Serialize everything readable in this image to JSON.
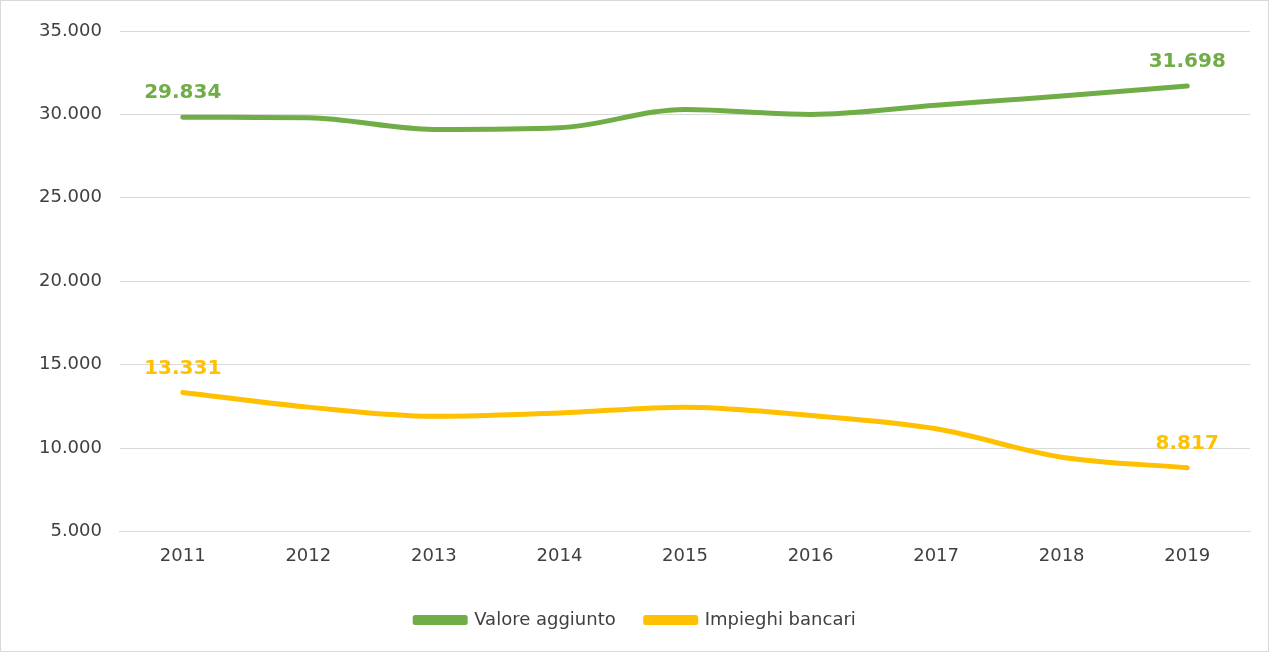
{
  "chart_data": {
    "type": "line",
    "categories": [
      "2011",
      "2012",
      "2013",
      "2014",
      "2015",
      "2016",
      "2017",
      "2018",
      "2019"
    ],
    "series": [
      {
        "name": "Valore aggiunto",
        "color": "#70ad47",
        "values": [
          29834,
          29800,
          29100,
          29200,
          30300,
          30000,
          30550,
          31100,
          31698
        ],
        "value_labels": [
          "29.834",
          null,
          null,
          null,
          null,
          null,
          null,
          null,
          "31.698"
        ]
      },
      {
        "name": "Impieghi bancari",
        "color": "#ffc000",
        "values": [
          13331,
          12450,
          11900,
          12100,
          12450,
          11950,
          11150,
          9450,
          8817
        ],
        "value_labels": [
          "13.331",
          null,
          null,
          null,
          null,
          null,
          null,
          null,
          "8.817"
        ]
      }
    ],
    "ylim": [
      5000,
      35000
    ],
    "yticks": [
      {
        "value": 5000,
        "label": "5.000"
      },
      {
        "value": 10000,
        "label": "10.000"
      },
      {
        "value": 15000,
        "label": "15.000"
      },
      {
        "value": 20000,
        "label": "20.000"
      },
      {
        "value": 25000,
        "label": "25.000"
      },
      {
        "value": 30000,
        "label": "30.000"
      },
      {
        "value": 35000,
        "label": "35.000"
      }
    ],
    "grid": "y",
    "legend": "bottom",
    "marker": "none",
    "line_style": "solid"
  }
}
